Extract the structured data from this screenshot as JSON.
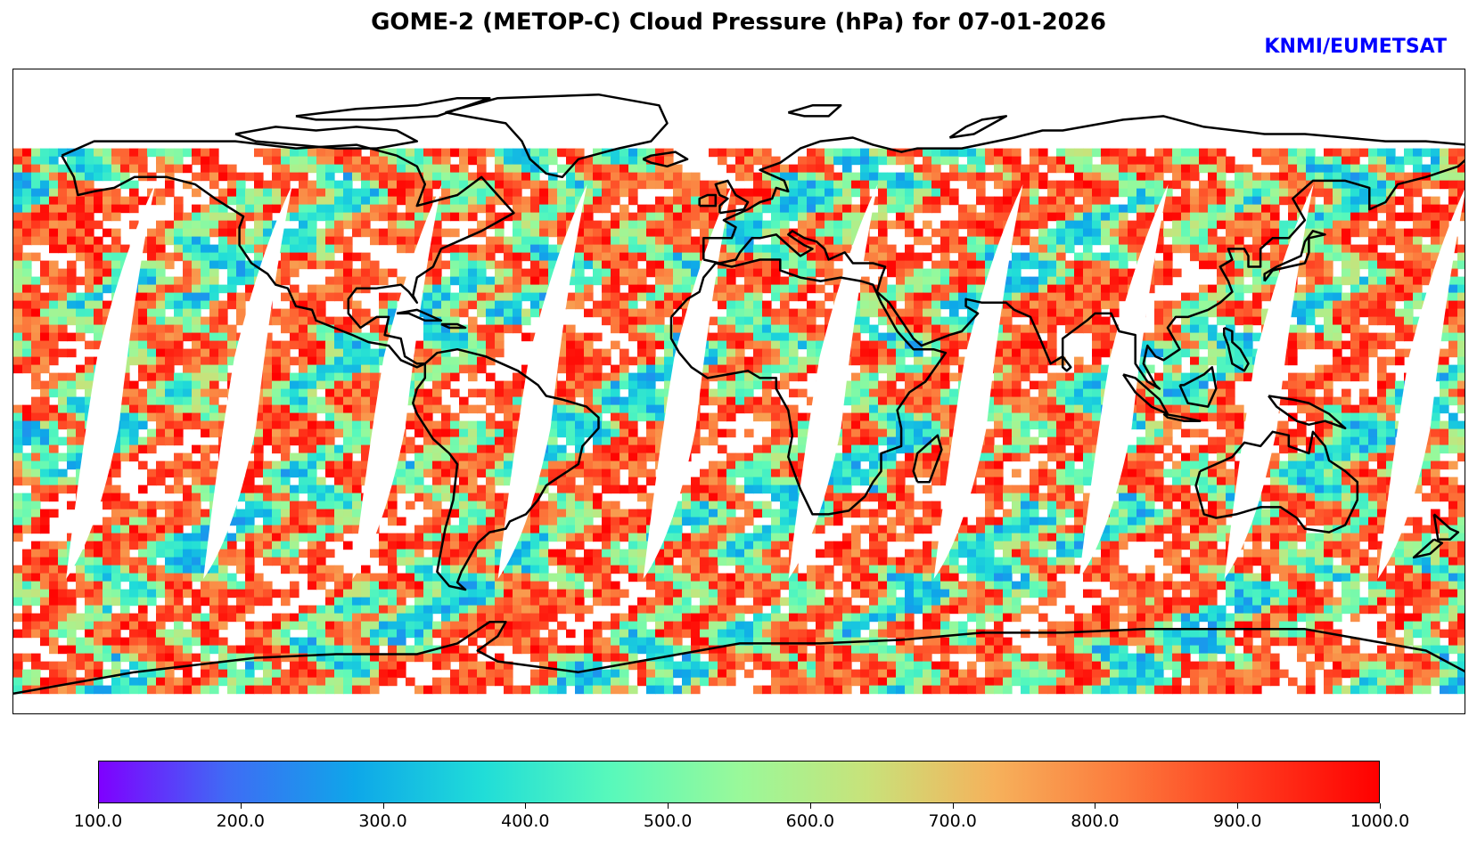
{
  "title": "GOME-2 (METOP-C) Cloud Pressure (hPa) for 07-01-2026",
  "credit": "KNMI/EUMETSAT",
  "colors": {
    "credit": "#0000ff",
    "coastline": "#000000",
    "colormap": [
      "#7f00ff",
      "#3f6bf5",
      "#0ea7e9",
      "#20ddd8",
      "#58f9bb",
      "#99f99a",
      "#c8e27a",
      "#f6b15b",
      "#fc7a3c",
      "#ff3a1e",
      "#ff0000"
    ]
  },
  "colorbar": {
    "min": 100.0,
    "max": 1000.0,
    "ticks": [
      "100.0",
      "200.0",
      "300.0",
      "400.0",
      "500.0",
      "600.0",
      "700.0",
      "800.0",
      "900.0",
      "1000.0"
    ]
  },
  "chart_data": {
    "type": "heatmap",
    "projection": "equirectangular",
    "variable": "Cloud Pressure",
    "units": "hPa",
    "date": "07-01-2026",
    "instrument": "GOME-2 (METOP-C)",
    "lon_range": [
      -180,
      180
    ],
    "lat_range": [
      -90,
      90
    ],
    "coverage_lat_range": [
      -82,
      68
    ],
    "orbit_gaps_equator_lon": [
      -157,
      -123,
      -86,
      -50,
      -14,
      22,
      58,
      94,
      130,
      168
    ],
    "value_range": [
      100.0,
      1000.0
    ]
  }
}
